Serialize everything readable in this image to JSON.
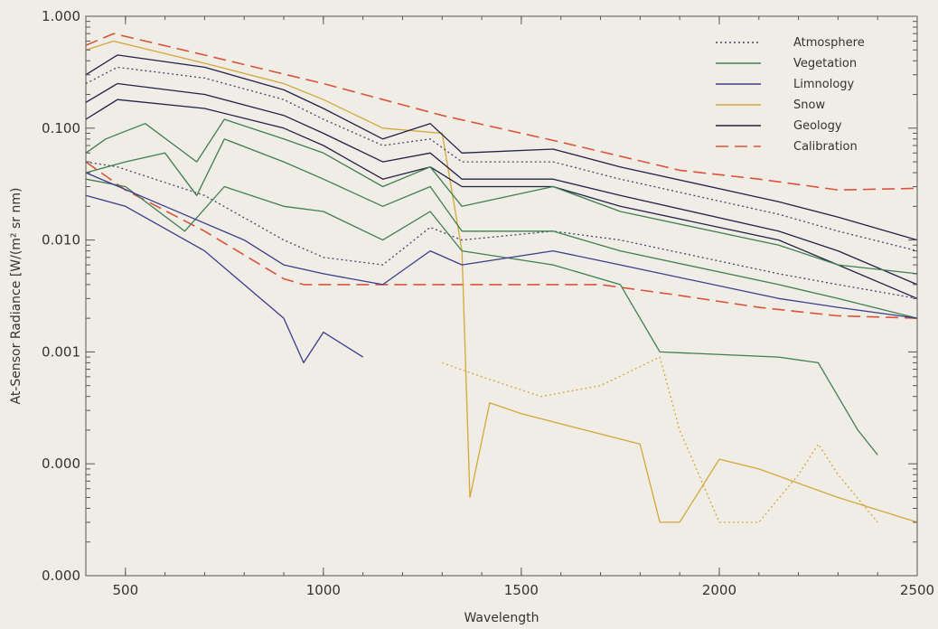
{
  "chart_data": {
    "type": "line",
    "xlabel": "Wavelength",
    "ylabel": "At-Sensor Radiance [W/(m² sr nm)",
    "xlim": [
      400,
      2500
    ],
    "ylim_log10": [
      -5,
      0
    ],
    "y_scale": "log",
    "x_ticks": [
      500,
      1000,
      1500,
      2000,
      2500
    ],
    "x_tick_labels": [
      "500",
      "1000",
      "1500",
      "2000",
      "2500"
    ],
    "y_ticks": [
      1,
      0.1,
      0.01,
      0.001,
      0.0001,
      1e-05
    ],
    "y_tick_labels": [
      "1.000",
      "0.100",
      "0.010",
      "0.001",
      "0.000",
      "0.000"
    ],
    "grid": false,
    "legend_position": "top-right",
    "legend": [
      {
        "label": "Atmosphere",
        "color": "#444466",
        "style": "dotted"
      },
      {
        "label": "Vegetation",
        "color": "#3f7f52",
        "style": "solid"
      },
      {
        "label": "Limnology",
        "color": "#3c3c8c",
        "style": "solid"
      },
      {
        "label": "Snow",
        "color": "#d4a73a",
        "style": "solid"
      },
      {
        "label": "Geology",
        "color": "#22224a",
        "style": "solid"
      },
      {
        "label": "Calibration",
        "color": "#d9543b",
        "style": "dashed"
      }
    ],
    "series": [
      {
        "category": "Calibration",
        "color": "#d9543b",
        "style": "dashed",
        "points": [
          [
            400,
            0.55
          ],
          [
            470,
            0.7
          ],
          [
            700,
            0.45
          ],
          [
            1000,
            0.25
          ],
          [
            1300,
            0.13
          ],
          [
            1600,
            0.075
          ],
          [
            1900,
            0.042
          ],
          [
            2100,
            0.035
          ],
          [
            2300,
            0.028
          ],
          [
            2500,
            0.029
          ]
        ]
      },
      {
        "category": "Calibration",
        "color": "#d9543b",
        "style": "dashed",
        "points": [
          [
            400,
            0.05
          ],
          [
            500,
            0.028
          ],
          [
            700,
            0.012
          ],
          [
            900,
            0.0045
          ],
          [
            950,
            0.004
          ],
          [
            1300,
            0.004
          ],
          [
            1700,
            0.004
          ],
          [
            1900,
            0.0032
          ],
          [
            2100,
            0.0025
          ],
          [
            2300,
            0.0021
          ],
          [
            2500,
            0.002
          ]
        ]
      },
      {
        "category": "Snow",
        "color": "#d4a73a",
        "style": "solid",
        "shape": "snow",
        "points": [
          [
            400,
            0.5
          ],
          [
            470,
            0.6
          ],
          [
            700,
            0.38
          ],
          [
            900,
            0.25
          ],
          [
            1000,
            0.18
          ],
          [
            1150,
            0.1
          ],
          [
            1300,
            0.09
          ],
          [
            1350,
            0.008
          ],
          [
            1370,
            5e-05
          ],
          [
            1420,
            0.00035
          ],
          [
            1500,
            0.00028
          ],
          [
            1800,
            0.00015
          ],
          [
            1850,
            3e-05
          ],
          [
            1900,
            3e-05
          ],
          [
            2000,
            0.00011
          ],
          [
            2100,
            9e-05
          ],
          [
            2300,
            5e-05
          ],
          [
            2500,
            3e-05
          ]
        ]
      },
      {
        "category": "Snow",
        "color": "#d4a73a",
        "style": "dotted",
        "points": [
          [
            1300,
            0.0008
          ],
          [
            1400,
            0.0006
          ],
          [
            1550,
            0.0004
          ],
          [
            1700,
            0.0005
          ],
          [
            1850,
            0.0009
          ],
          [
            1900,
            0.0002
          ],
          [
            2000,
            3e-05
          ],
          [
            2100,
            3e-05
          ],
          [
            2200,
            8e-05
          ],
          [
            2250,
            0.00015
          ],
          [
            2300,
            8e-05
          ],
          [
            2400,
            3e-05
          ]
        ]
      },
      {
        "category": "Geology",
        "color": "#22224a",
        "style": "solid",
        "points": [
          [
            400,
            0.3
          ],
          [
            480,
            0.45
          ],
          [
            700,
            0.35
          ],
          [
            900,
            0.22
          ],
          [
            1000,
            0.15
          ],
          [
            1150,
            0.08
          ],
          [
            1270,
            0.11
          ],
          [
            1350,
            0.06
          ],
          [
            1580,
            0.065
          ],
          [
            1750,
            0.045
          ],
          [
            2150,
            0.022
          ],
          [
            2300,
            0.016
          ],
          [
            2500,
            0.01
          ]
        ]
      },
      {
        "category": "Geology",
        "color": "#22224a",
        "style": "solid",
        "points": [
          [
            400,
            0.17
          ],
          [
            480,
            0.25
          ],
          [
            700,
            0.2
          ],
          [
            900,
            0.13
          ],
          [
            1000,
            0.09
          ],
          [
            1150,
            0.05
          ],
          [
            1270,
            0.06
          ],
          [
            1350,
            0.035
          ],
          [
            1580,
            0.035
          ],
          [
            1750,
            0.025
          ],
          [
            2150,
            0.012
          ],
          [
            2300,
            0.008
          ],
          [
            2500,
            0.004
          ]
        ]
      },
      {
        "category": "Geology",
        "color": "#22224a",
        "style": "solid",
        "points": [
          [
            400,
            0.12
          ],
          [
            480,
            0.18
          ],
          [
            700,
            0.15
          ],
          [
            900,
            0.1
          ],
          [
            1000,
            0.07
          ],
          [
            1150,
            0.035
          ],
          [
            1270,
            0.045
          ],
          [
            1350,
            0.03
          ],
          [
            1580,
            0.03
          ],
          [
            1750,
            0.02
          ],
          [
            2150,
            0.01
          ],
          [
            2300,
            0.006
          ],
          [
            2500,
            0.003
          ]
        ]
      },
      {
        "category": "Atmosphere",
        "color": "#444466",
        "style": "dotted",
        "points": [
          [
            400,
            0.25
          ],
          [
            480,
            0.35
          ],
          [
            700,
            0.28
          ],
          [
            900,
            0.18
          ],
          [
            1000,
            0.12
          ],
          [
            1150,
            0.07
          ],
          [
            1270,
            0.08
          ],
          [
            1350,
            0.05
          ],
          [
            1580,
            0.05
          ],
          [
            1750,
            0.035
          ],
          [
            2150,
            0.017
          ],
          [
            2300,
            0.012
          ],
          [
            2500,
            0.008
          ]
        ]
      },
      {
        "category": "Atmosphere",
        "color": "#444466",
        "style": "dotted",
        "points": [
          [
            400,
            0.05
          ],
          [
            480,
            0.045
          ],
          [
            700,
            0.025
          ],
          [
            900,
            0.01
          ],
          [
            1000,
            0.007
          ],
          [
            1150,
            0.006
          ],
          [
            1270,
            0.013
          ],
          [
            1350,
            0.01
          ],
          [
            1580,
            0.012
          ],
          [
            1750,
            0.01
          ],
          [
            2150,
            0.005
          ],
          [
            2300,
            0.004
          ],
          [
            2500,
            0.003
          ]
        ]
      },
      {
        "category": "Vegetation",
        "color": "#3f7f52",
        "style": "solid",
        "points": [
          [
            400,
            0.06
          ],
          [
            450,
            0.08
          ],
          [
            550,
            0.11
          ],
          [
            680,
            0.05
          ],
          [
            750,
            0.12
          ],
          [
            900,
            0.08
          ],
          [
            1000,
            0.06
          ],
          [
            1150,
            0.03
          ],
          [
            1270,
            0.045
          ],
          [
            1350,
            0.02
          ],
          [
            1580,
            0.03
          ],
          [
            1750,
            0.018
          ],
          [
            2150,
            0.009
          ],
          [
            2300,
            0.006
          ],
          [
            2500,
            0.005
          ]
        ]
      },
      {
        "category": "Vegetation",
        "color": "#3f7f52",
        "style": "solid",
        "points": [
          [
            400,
            0.04
          ],
          [
            500,
            0.05
          ],
          [
            600,
            0.06
          ],
          [
            680,
            0.025
          ],
          [
            750,
            0.08
          ],
          [
            900,
            0.05
          ],
          [
            1000,
            0.035
          ],
          [
            1150,
            0.02
          ],
          [
            1270,
            0.03
          ],
          [
            1350,
            0.012
          ],
          [
            1580,
            0.012
          ],
          [
            1750,
            0.008
          ],
          [
            2150,
            0.004
          ],
          [
            2300,
            0.003
          ],
          [
            2500,
            0.002
          ]
        ]
      },
      {
        "category": "Vegetation",
        "color": "#3f7f52",
        "style": "solid",
        "points": [
          [
            400,
            0.035
          ],
          [
            500,
            0.03
          ],
          [
            650,
            0.012
          ],
          [
            750,
            0.03
          ],
          [
            900,
            0.02
          ],
          [
            1000,
            0.018
          ],
          [
            1150,
            0.01
          ],
          [
            1270,
            0.018
          ],
          [
            1350,
            0.008
          ],
          [
            1580,
            0.006
          ],
          [
            1750,
            0.004
          ],
          [
            1850,
            0.001
          ],
          [
            2150,
            0.0009
          ],
          [
            2250,
            0.0008
          ],
          [
            2350,
            0.0002
          ],
          [
            2400,
            0.00012
          ]
        ]
      },
      {
        "category": "Limnology",
        "color": "#3c3c8c",
        "style": "solid",
        "points": [
          [
            400,
            0.025
          ],
          [
            500,
            0.02
          ],
          [
            700,
            0.008
          ],
          [
            800,
            0.004
          ],
          [
            900,
            0.002
          ],
          [
            950,
            0.0008
          ],
          [
            1000,
            0.0015
          ],
          [
            1100,
            0.0009
          ]
        ]
      },
      {
        "category": "Limnology",
        "color": "#3c3c8c",
        "style": "solid",
        "points": [
          [
            400,
            0.04
          ],
          [
            600,
            0.02
          ],
          [
            800,
            0.01
          ],
          [
            900,
            0.006
          ],
          [
            1000,
            0.005
          ],
          [
            1150,
            0.004
          ],
          [
            1270,
            0.008
          ],
          [
            1350,
            0.006
          ],
          [
            1580,
            0.008
          ],
          [
            1750,
            0.006
          ],
          [
            2150,
            0.003
          ],
          [
            2300,
            0.0025
          ],
          [
            2500,
            0.002
          ]
        ]
      }
    ]
  }
}
